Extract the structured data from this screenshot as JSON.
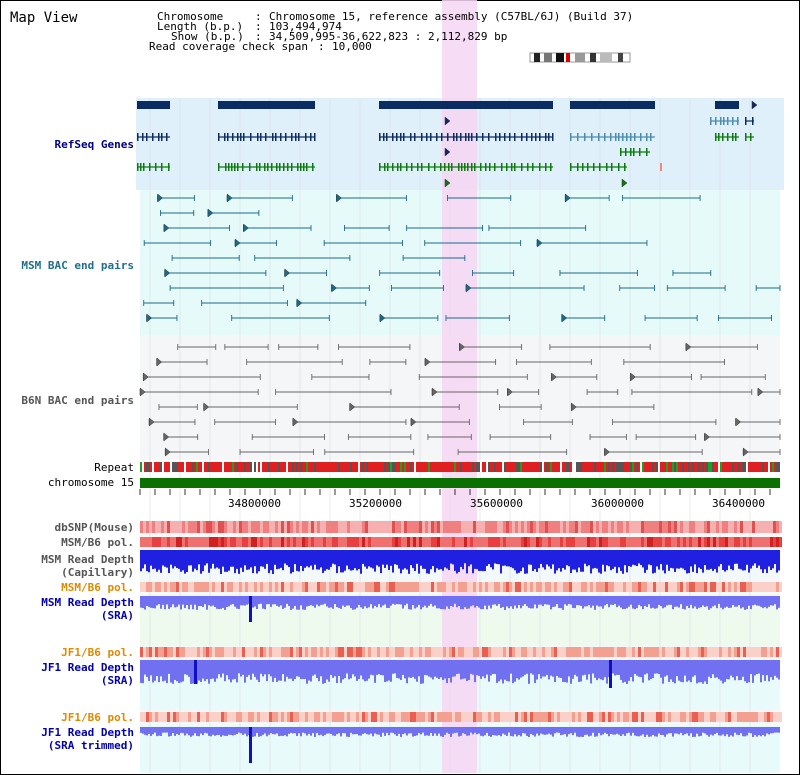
{
  "view_title": "Map View",
  "header": {
    "chromosome_key": "Chromosome",
    "chromosome_value": "Chromosome 15, reference assembly (C57BL/6J) (Build 37)",
    "length_key": "Length (b.p.)",
    "length_value": "103,494,974",
    "show_key": "Show (b.p.)",
    "show_value": "34,509,995-36,622,823 : 2,112,829 bp",
    "coverage_key": "Read coverage check span",
    "coverage_value": "10,000",
    "separator": ":"
  },
  "tracks": {
    "refseq": "RefSeq Genes",
    "msm_bac": "MSM BAC end pairs",
    "b6n_bac": "B6N BAC end pairs",
    "repeat": "Repeat",
    "chromosome": "chromosome 15",
    "dbsnp": "dbSNP(Mouse)",
    "msm_b6_pol_1": "MSM/B6 pol.",
    "msm_depth_cap": "MSM Read Depth",
    "msm_depth_cap_sub": "(Capillary)",
    "msm_b6_pol_2": "MSM/B6 pol.",
    "msm_depth_sra": "MSM Read Depth",
    "msm_depth_sra_sub": "(SRA)",
    "jf1_b6_pol_1": "JF1/B6 pol.",
    "jf1_depth_sra": "JF1 Read Depth",
    "jf1_depth_sra_sub": "(SRA)",
    "jf1_b6_pol_2": "JF1/B6 pol.",
    "jf1_depth_trim": "JF1 Read Depth",
    "jf1_depth_trim_sub": "(SRA trimmed)"
  },
  "axis_ticks": [
    "34800000",
    "35200000",
    "35600000",
    "36000000",
    "36400000"
  ],
  "colors": {
    "refseq_bg": "#dff0fa",
    "msm_bg": "#e6fafa",
    "b6n_bg": "#f4f6f8",
    "highlight": "#f6d6f3",
    "refseq_dark": "#0a2c62",
    "refseq_mid": "#4a8cb0",
    "refseq_green": "#0a7a0a",
    "msm_line": "#1a6a8a",
    "b6n_line": "#666666",
    "chromosome_bar": "#0a7000",
    "label_navy": "#000080",
    "label_teal": "#1f6e8c",
    "label_gray": "#555555",
    "label_orange": "#e08a00",
    "label_blue": "#0000b0",
    "depth_blue": "#2020e0",
    "depth_light": "#7070f0"
  }
}
